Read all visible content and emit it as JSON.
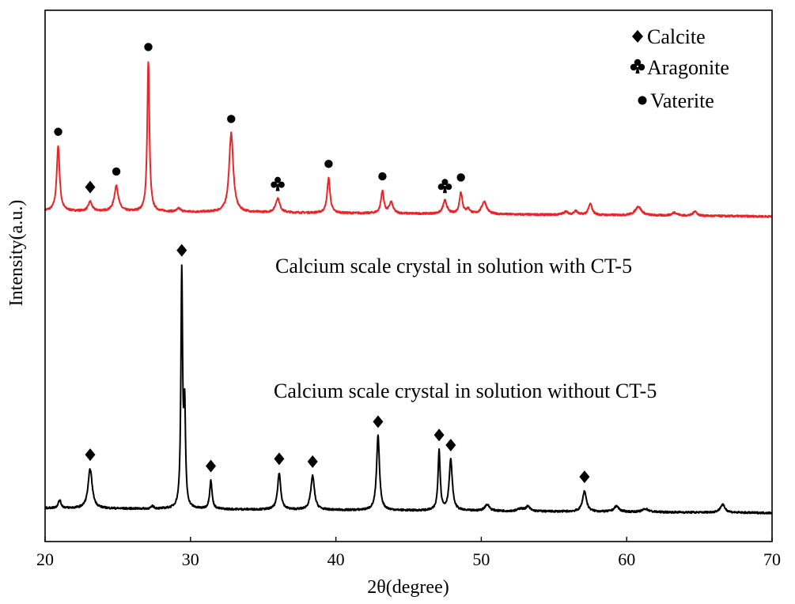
{
  "chart_data": {
    "type": "line",
    "xlabel": "2θ(degree)",
    "ylabel": "Intensity(a.u.)",
    "xlim": [
      20,
      70
    ],
    "xticks": [
      20,
      30,
      40,
      50,
      60,
      70
    ],
    "yticks_shown": false,
    "grid": false,
    "legend_position": "top-right",
    "legend": [
      {
        "marker": "diamond",
        "label": "Calcite"
      },
      {
        "marker": "club",
        "label": "Aragonite"
      },
      {
        "marker": "circle",
        "label": "Vaterite"
      }
    ],
    "series": [
      {
        "label": "Calcium scale crystal in solution with CT-5",
        "color": "#e8262a",
        "baseline": 0.63,
        "drift": -0.035,
        "peaks": [
          [
            20.9,
            2.05,
            0.12,
            "circle"
          ],
          [
            23.1,
            0.3,
            0.15,
            "diamond"
          ],
          [
            24.9,
            0.8,
            0.17,
            "circle"
          ],
          [
            27.1,
            4.75,
            0.09,
            "circle"
          ],
          [
            29.2,
            0.1,
            0.15,
            null
          ],
          [
            32.8,
            2.5,
            0.17,
            "circle"
          ],
          [
            36.0,
            0.45,
            0.17,
            "club"
          ],
          [
            39.5,
            1.1,
            0.12,
            "circle"
          ],
          [
            43.2,
            0.7,
            0.12,
            "circle"
          ],
          [
            43.8,
            0.35,
            0.15,
            null
          ],
          [
            47.5,
            0.42,
            0.16,
            "club"
          ],
          [
            48.6,
            0.68,
            0.12,
            "circle"
          ],
          [
            49.1,
            0.15,
            0.15,
            null
          ],
          [
            50.2,
            0.4,
            0.2,
            null
          ],
          [
            55.8,
            0.1,
            0.18,
            null
          ],
          [
            56.5,
            0.12,
            0.15,
            null
          ],
          [
            57.5,
            0.35,
            0.15,
            null
          ],
          [
            60.8,
            0.28,
            0.25,
            null
          ],
          [
            63.3,
            0.1,
            0.2,
            null
          ],
          [
            64.7,
            0.15,
            0.15,
            null
          ]
        ]
      },
      {
        "label": "Calcium scale crystal in solution without CT-5",
        "color": "#000000",
        "baseline": 0.08,
        "drift": -0.03,
        "peaks": [
          [
            21.0,
            0.25,
            0.12,
            null
          ],
          [
            23.1,
            1.25,
            0.17,
            "diamond"
          ],
          [
            27.4,
            0.08,
            0.1,
            null
          ],
          [
            29.4,
            7.4,
            0.07,
            "diamond"
          ],
          [
            29.6,
            3.0,
            0.07,
            null
          ],
          [
            31.4,
            0.9,
            0.1,
            "diamond"
          ],
          [
            36.1,
            1.15,
            0.13,
            "diamond"
          ],
          [
            38.4,
            1.07,
            0.15,
            "diamond"
          ],
          [
            42.9,
            2.35,
            0.12,
            "diamond"
          ],
          [
            47.1,
            1.9,
            0.09,
            "diamond"
          ],
          [
            47.9,
            1.6,
            0.13,
            "diamond"
          ],
          [
            50.4,
            0.2,
            0.2,
            null
          ],
          [
            52.7,
            0.08,
            0.2,
            null
          ],
          [
            53.2,
            0.15,
            0.18,
            null
          ],
          [
            57.1,
            0.65,
            0.16,
            "diamond"
          ],
          [
            59.3,
            0.18,
            0.2,
            null
          ],
          [
            61.3,
            0.1,
            0.25,
            null
          ],
          [
            66.6,
            0.25,
            0.2,
            null
          ]
        ]
      }
    ]
  }
}
